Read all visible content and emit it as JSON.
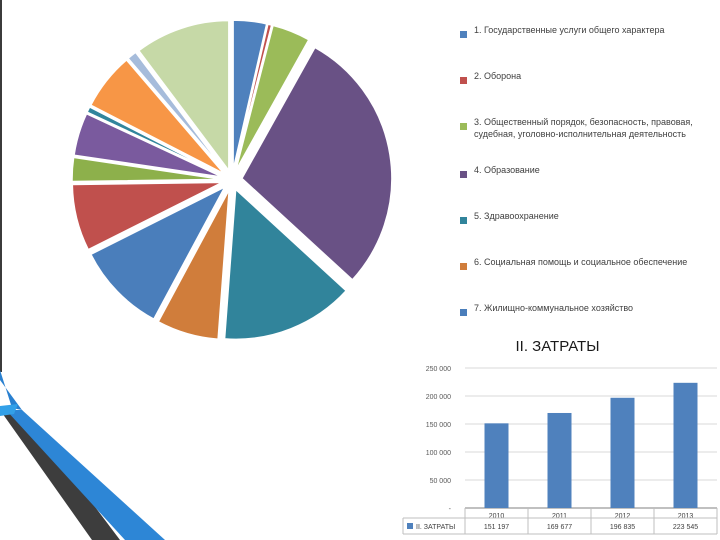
{
  "chart_data": [
    {
      "type": "pie",
      "title": "",
      "slices": [
        {
          "label": "1. Государственные услуги общего характера",
          "value": 3.5,
          "color": "#4f81bd"
        },
        {
          "label": "2. Оборона",
          "value": 0.4,
          "color": "#c0504d"
        },
        {
          "label": "3. Общественный порядок, безопасность, правовая, судебная, уголовно-исполнительная деятельность",
          "value": 4.0,
          "color": "#9bbb59"
        },
        {
          "label": "4. Образование",
          "value": 28.0,
          "color": "#695185"
        },
        {
          "label": "5. Здравоохранение",
          "value": 14.0,
          "color": "#31849b"
        },
        {
          "label": "6. Социальная помощь и социальное обеспечение",
          "value": 6.5,
          "color": "#d07d3b"
        },
        {
          "label": "7. Жилищно-коммунальное хозяйство",
          "value": 9.5,
          "color": "#4a7ebb"
        },
        {
          "label": "",
          "value": 7.0,
          "color": "#c0504d"
        },
        {
          "label": "",
          "value": 2.5,
          "color": "#8db04b"
        },
        {
          "label": "",
          "value": 4.5,
          "color": "#7a5a9e"
        },
        {
          "label": "",
          "value": 0.6,
          "color": "#31859c"
        },
        {
          "label": "",
          "value": 6.0,
          "color": "#f79646"
        },
        {
          "label": "",
          "value": 1.0,
          "color": "#a6bcdb"
        },
        {
          "label": "",
          "value": 10.0,
          "color": "#c6d9a7"
        }
      ]
    },
    {
      "type": "bar",
      "title": "II. ЗАТРАТЫ",
      "categories": [
        "2010",
        "2011",
        "2012",
        "2013"
      ],
      "series": [
        {
          "name": "II. ЗАТРАТЫ",
          "values": [
            151197,
            169677,
            196835,
            223545
          ]
        }
      ],
      "value_labels": [
        "151 197",
        "169 677",
        "196 835",
        "223 545"
      ],
      "ylim": [
        0,
        250000
      ],
      "yticks": [
        "-",
        "50 000",
        "100 000",
        "150 000",
        "200 000",
        "250 000"
      ],
      "color": "#4f81bd",
      "grid": true,
      "legend": "bottom-table"
    }
  ]
}
